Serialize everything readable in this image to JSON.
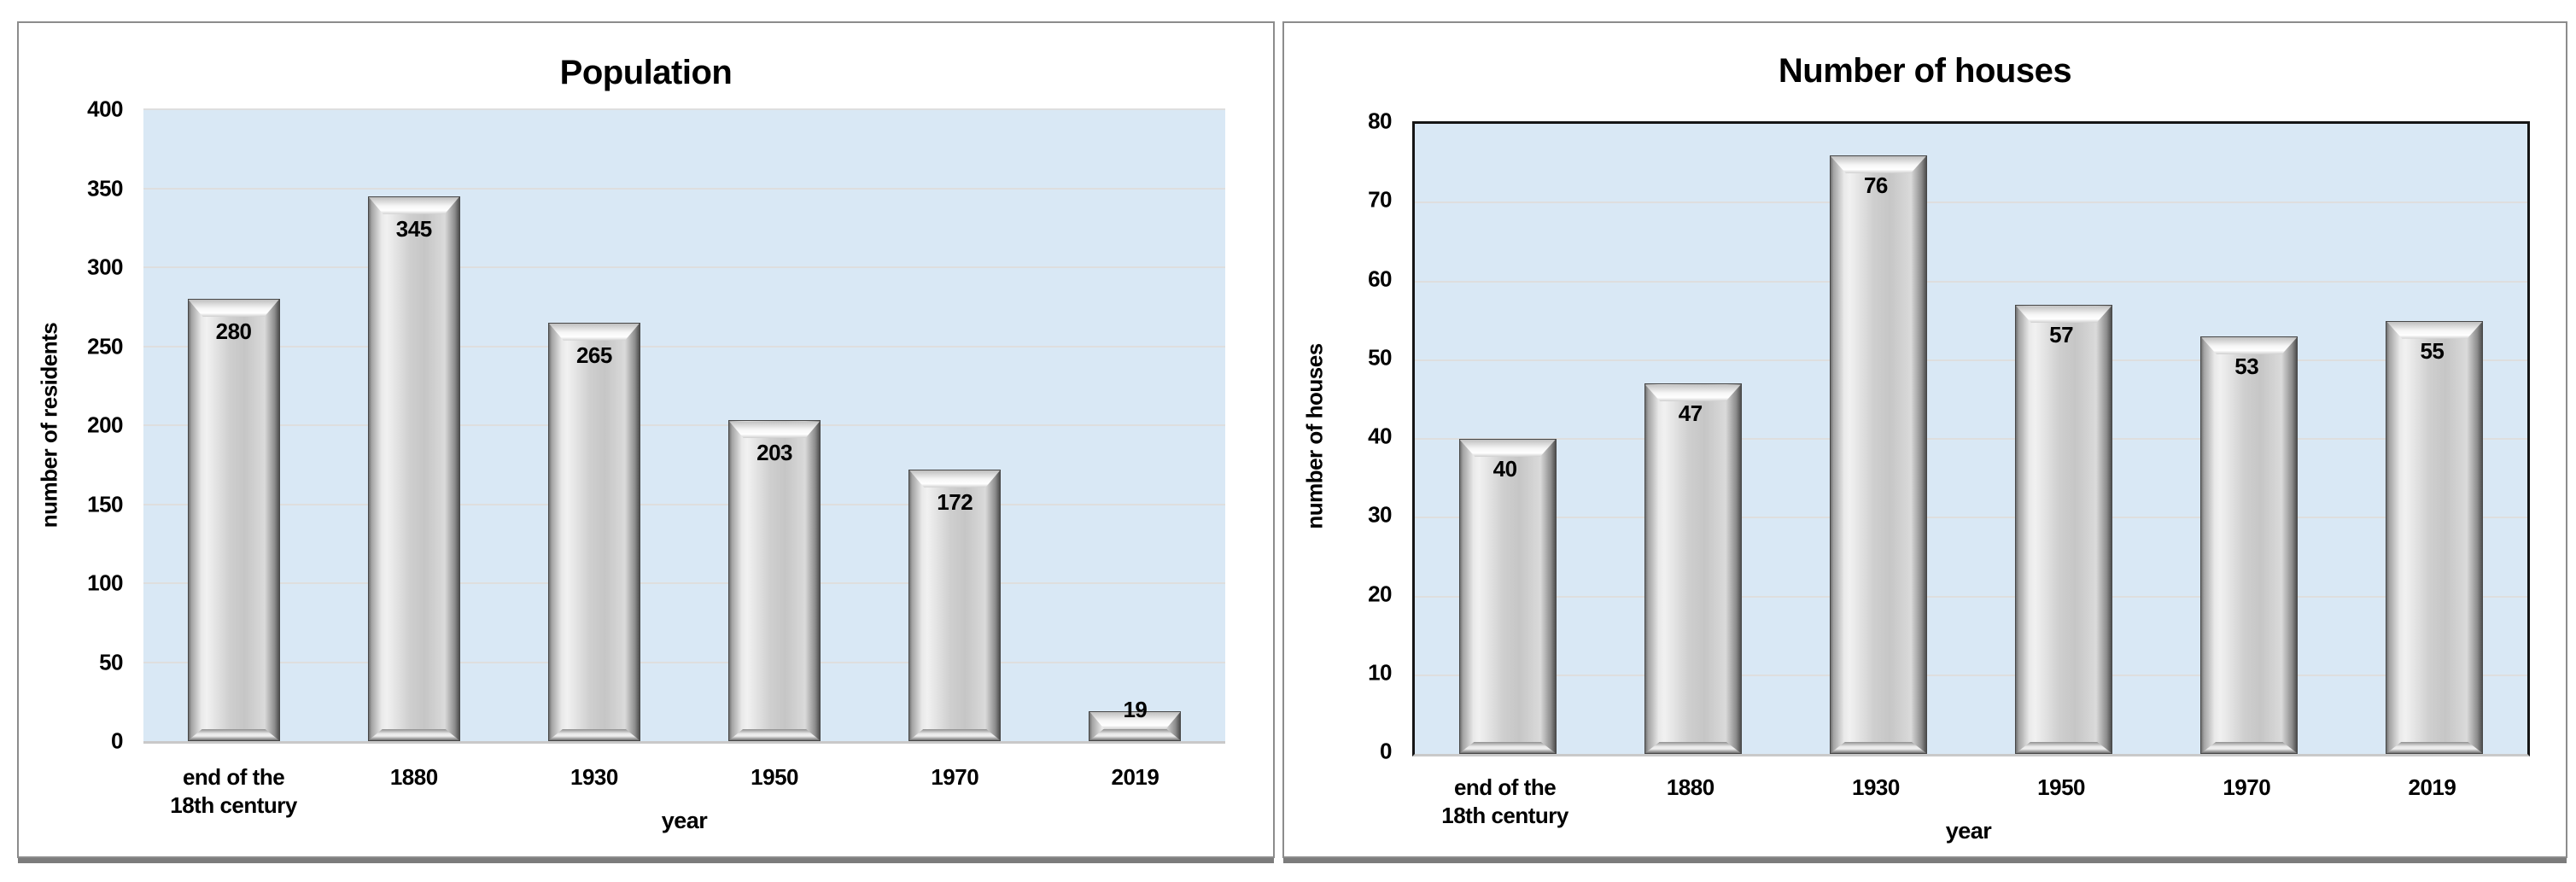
{
  "chart_data": [
    {
      "type": "bar",
      "title": "Population",
      "categories": [
        "end of the 18th century",
        "1880",
        "1930",
        "1950",
        "1970",
        "2019"
      ],
      "values": [
        280,
        345,
        265,
        203,
        172,
        19
      ],
      "xlabel": "year",
      "ylabel": "number of residents",
      "ylim": [
        0,
        400
      ],
      "ytick_step": 50,
      "grid": true,
      "plot_border": false,
      "legend": "none",
      "data_labels_shown": true
    },
    {
      "type": "bar",
      "title": "Number of houses",
      "categories": [
        "end of the 18th century",
        "1880",
        "1930",
        "1950",
        "1970",
        "2019"
      ],
      "values": [
        40,
        47,
        76,
        57,
        53,
        55
      ],
      "xlabel": "year",
      "ylabel": "number of houses",
      "ylim": [
        0,
        80
      ],
      "ytick_step": 10,
      "grid": true,
      "plot_border": true,
      "legend": "none",
      "data_labels_shown": true
    }
  ],
  "colors": {
    "plot_bg": "#d9e8f5",
    "gridline": "#dedede",
    "axis_line_light": "#c9c9c9",
    "plot_border": "#151515",
    "panel_border": "#8c8c8c",
    "panel_shadow": "#7c7c7c",
    "bar_face_mid": "#cbcbcb",
    "bar_edge_dark": "#4e4e4e",
    "text": "#000000"
  }
}
